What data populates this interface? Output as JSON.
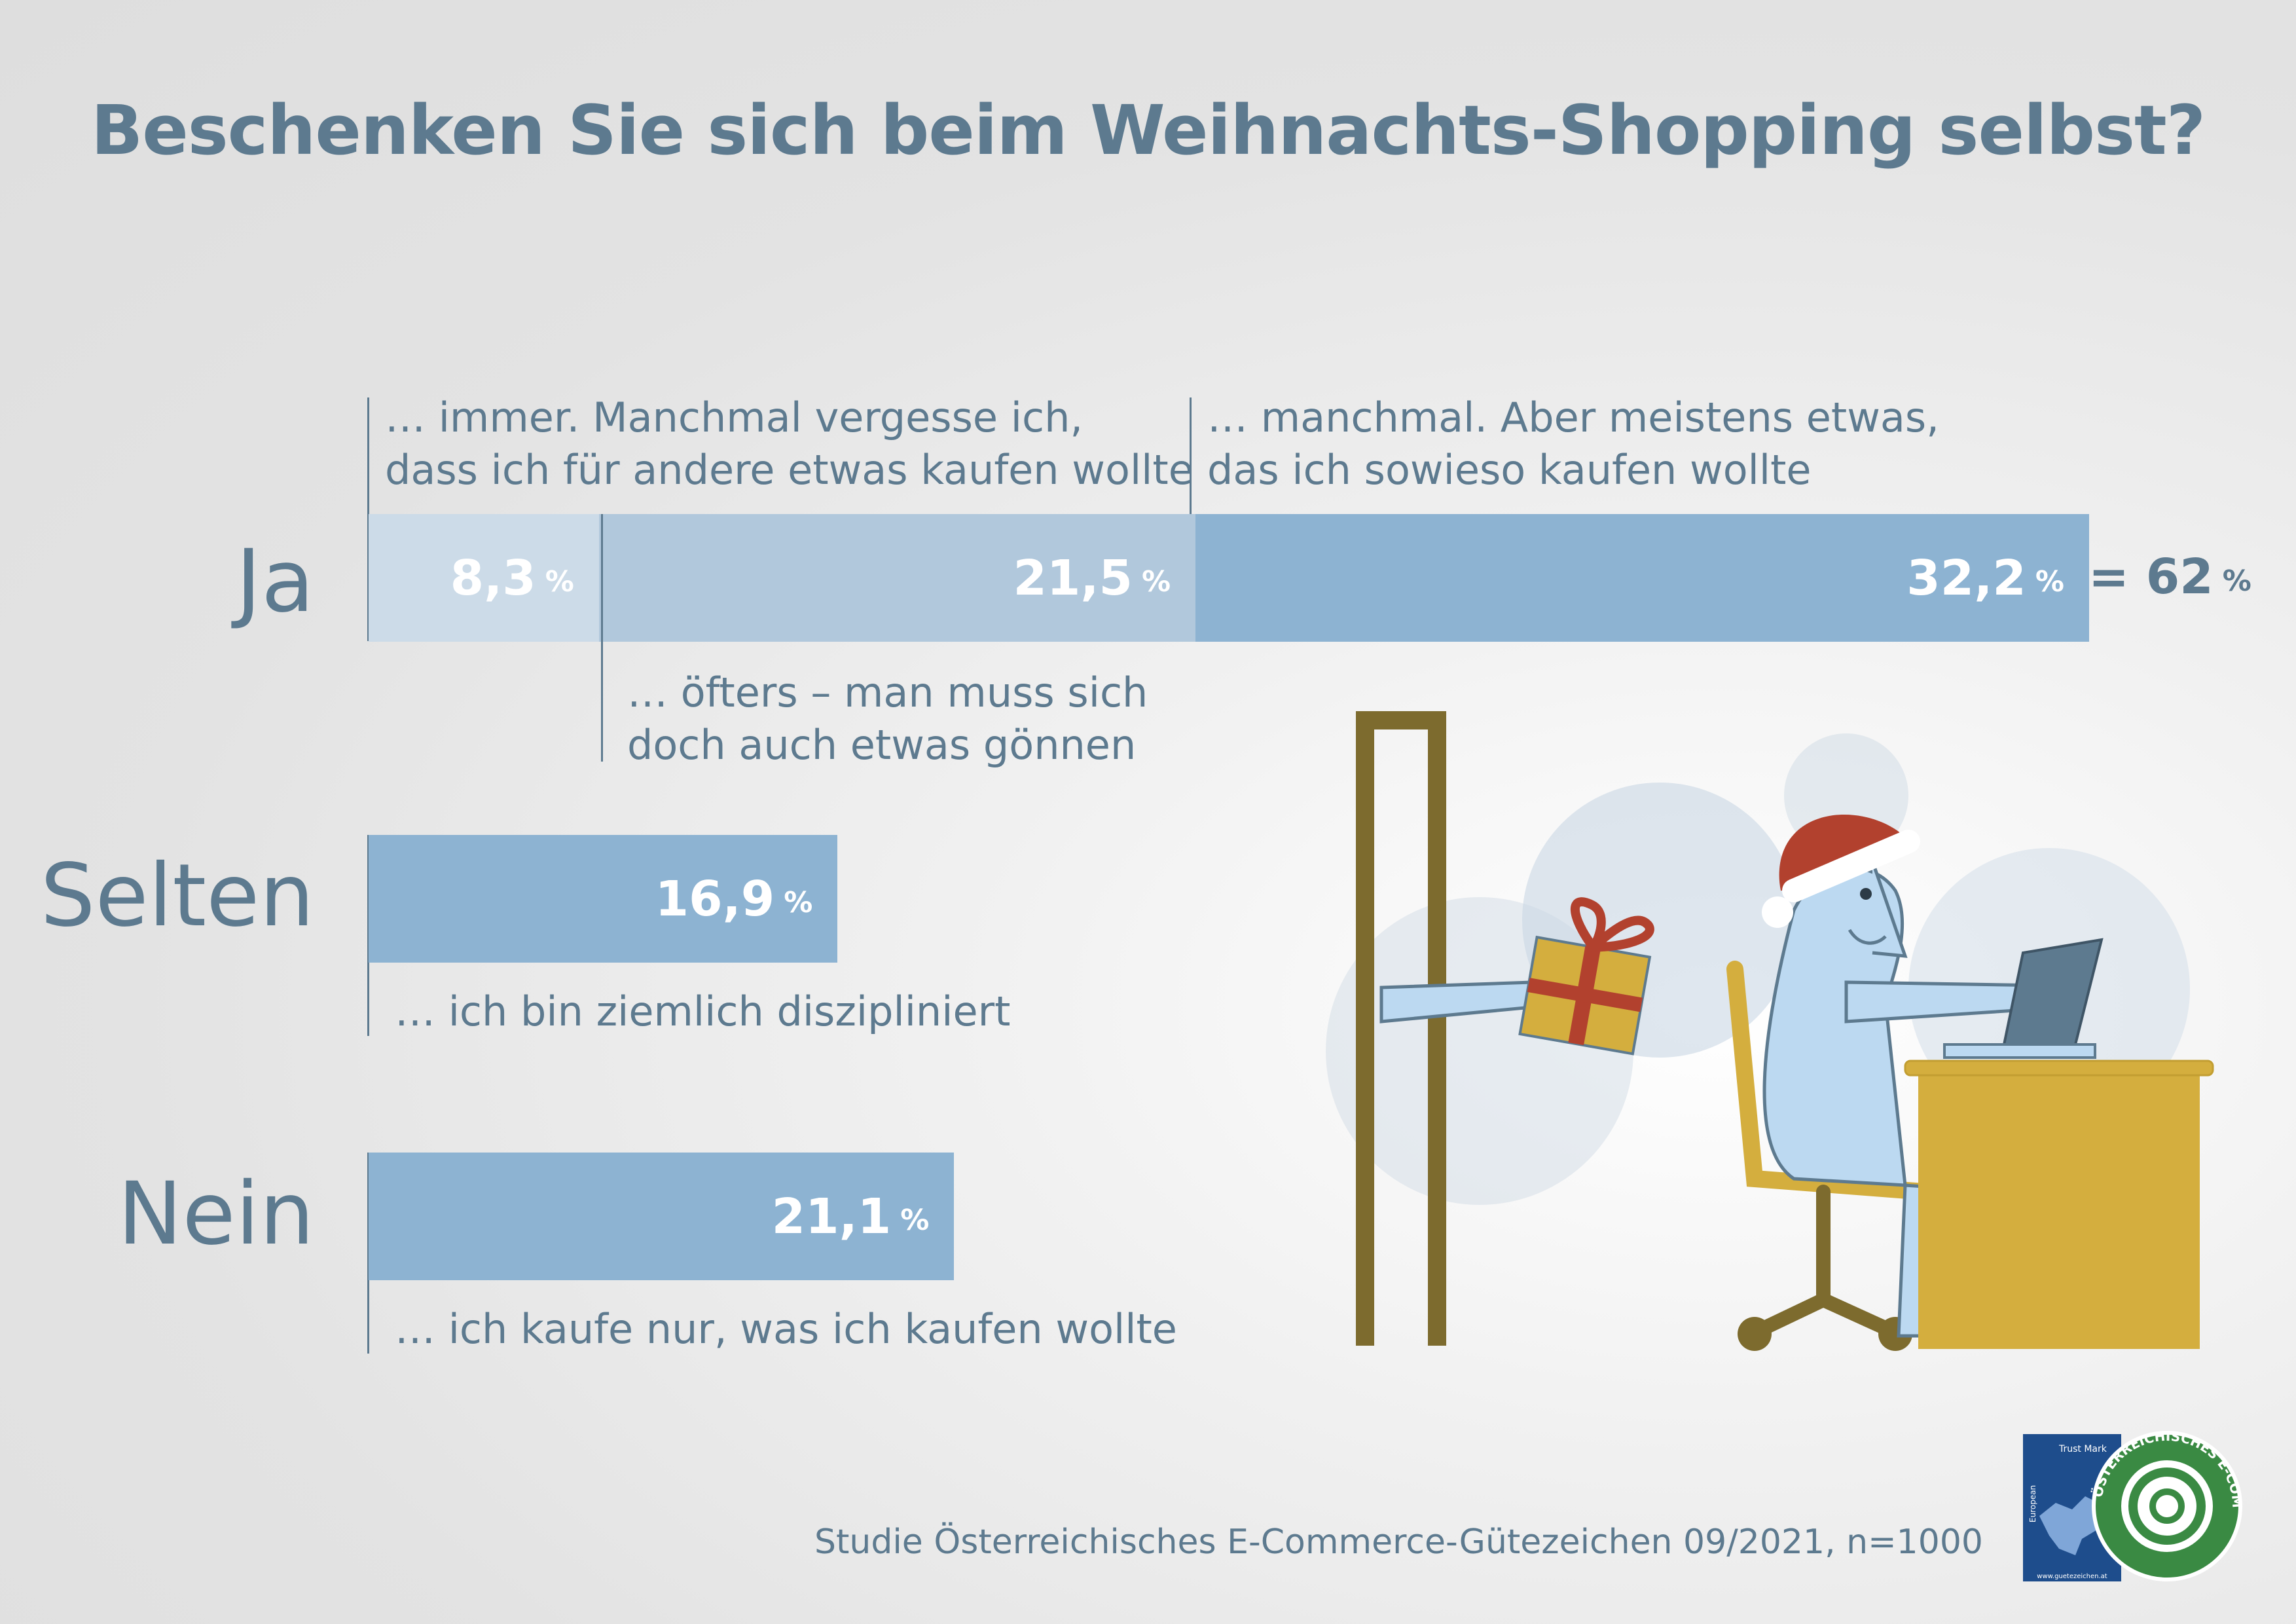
{
  "title": "Beschenken Sie sich beim Weihnachts-Shopping selbst?",
  "rows": {
    "ja": {
      "label": "Ja",
      "segments": [
        {
          "value": "8,3",
          "unit": "%",
          "color": "#ccdbe8"
        },
        {
          "value": "21,5",
          "unit": "%",
          "color": "#b1c8dc"
        },
        {
          "value": "32,2",
          "unit": "%",
          "color": "#8db3d2"
        }
      ],
      "total_prefix": "= 62",
      "total_unit": "%",
      "note_immer": [
        "… immer. Manchmal vergesse ich,",
        "dass ich für andere etwas kaufen wollte"
      ],
      "note_oefters": [
        "… öfters – man muss sich",
        "doch auch etwas gönnen"
      ],
      "note_manchmal": [
        "… manchmal. Aber meistens etwas,",
        "das ich sowieso kaufen wollte"
      ]
    },
    "selten": {
      "label": "Selten",
      "value": "16,9",
      "unit": "%",
      "color": "#8db3d2",
      "note": "… ich bin ziemlich diszipliniert"
    },
    "nein": {
      "label": "Nein",
      "value": "21,1",
      "unit": "%",
      "color": "#8db3d2",
      "note": "… ich kaufe nur, was ich kaufen wollte"
    }
  },
  "source": "Studie Österreichisches E-Commerce-Gütezeichen 09/2021, n=1000",
  "chart_data": {
    "type": "bar",
    "orientation": "horizontal",
    "title": "Beschenken Sie sich beim Weihnachts-Shopping selbst?",
    "categories": [
      "Ja",
      "Selten",
      "Nein"
    ],
    "series": [
      {
        "name": "… immer. Manchmal vergesse ich, dass ich für andere etwas kaufen wollte",
        "values": [
          8.3,
          null,
          null
        ]
      },
      {
        "name": "… öfters – man muss sich doch auch etwas gönnen",
        "values": [
          21.5,
          null,
          null
        ]
      },
      {
        "name": "… manchmal. Aber meistens etwas, das ich sowieso kaufen wollte",
        "values": [
          32.2,
          null,
          null
        ]
      },
      {
        "name": "… ich bin ziemlich diszipliniert",
        "values": [
          null,
          16.9,
          null
        ]
      },
      {
        "name": "… ich kaufe nur, was ich kaufen wollte",
        "values": [
          null,
          null,
          21.1
        ]
      }
    ],
    "stacked": true,
    "totals": {
      "Ja": 62
    },
    "unit": "%",
    "xlim": [
      0,
      62
    ],
    "grid": false
  },
  "logo_text": {
    "trust_mark": "Trust Mark",
    "european": "European",
    "seal_ring": "ÖSTERREICHISCHES E-COMMERCE-GÜTEZEICHEN",
    "url": "www.guetezeichen.at"
  },
  "colors": {
    "text": "#5d7a8f",
    "bar": "#8db3d2",
    "gift": "#d4ae3e",
    "ribbon": "#b2412e",
    "frame": "#7d6b2e"
  }
}
